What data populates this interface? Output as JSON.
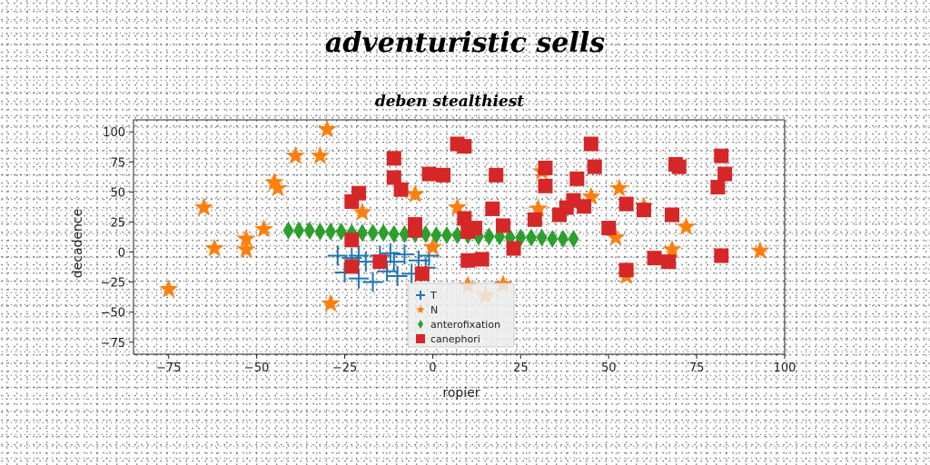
{
  "figure": {
    "title": "adventuristic sells"
  },
  "chart_data": {
    "type": "scatter",
    "title": "deben stealthiest",
    "xlabel": "ropier",
    "ylabel": "decadence",
    "xlim": [
      -85,
      100
    ],
    "ylim": [
      -85,
      110
    ],
    "xticks": [
      -75,
      -50,
      -25,
      0,
      25,
      50,
      75,
      100
    ],
    "yticks": [
      -75,
      -50,
      -25,
      0,
      25,
      50,
      75,
      100
    ],
    "xtick_labels": [
      "−75",
      "−50",
      "−25",
      "0",
      "25",
      "50",
      "75",
      "100"
    ],
    "ytick_labels": [
      "−75",
      "−50",
      "−25",
      "0",
      "25",
      "50",
      "75",
      "100"
    ],
    "grid": false,
    "legend_position": "bottom-center",
    "series": [
      {
        "name": "T",
        "marker": "plus",
        "color": "#1f77b4",
        "points": [
          [
            -27,
            -3
          ],
          [
            -25,
            -17
          ],
          [
            -23,
            -5
          ],
          [
            -21,
            -22
          ],
          [
            -19,
            -8
          ],
          [
            -17,
            -25
          ],
          [
            -15,
            -3
          ],
          [
            -13,
            -16
          ],
          [
            -11,
            -8
          ],
          [
            -10,
            -20
          ],
          [
            -8,
            -2
          ],
          [
            -6,
            -18
          ],
          [
            -4,
            -7
          ],
          [
            -2,
            -13
          ],
          [
            -1,
            -3
          ],
          [
            -21,
            -3
          ],
          [
            -12,
            -1
          ]
        ]
      },
      {
        "name": "N",
        "marker": "star",
        "color": "#ff7f0e",
        "points": [
          [
            -75,
            -31
          ],
          [
            -65,
            37
          ],
          [
            -62,
            3
          ],
          [
            -53,
            11
          ],
          [
            -53,
            2
          ],
          [
            -48,
            19
          ],
          [
            -45,
            58
          ],
          [
            -44,
            53
          ],
          [
            -39,
            80
          ],
          [
            -32,
            80
          ],
          [
            -30,
            102
          ],
          [
            -29,
            -43
          ],
          [
            -20,
            33
          ],
          [
            -5,
            48
          ],
          [
            0,
            4
          ],
          [
            7,
            37
          ],
          [
            10,
            -28
          ],
          [
            15,
            -36
          ],
          [
            20,
            -27
          ],
          [
            30,
            36
          ],
          [
            31,
            67
          ],
          [
            45,
            46
          ],
          [
            53,
            53
          ],
          [
            52,
            12
          ],
          [
            55,
            -20
          ],
          [
            60,
            38
          ],
          [
            68,
            2
          ],
          [
            72,
            21
          ],
          [
            93,
            1
          ]
        ]
      },
      {
        "name": "anterofixation",
        "marker": "diamond",
        "color": "#2ca02c",
        "points": [
          [
            -41,
            18
          ],
          [
            -38,
            18
          ],
          [
            -35,
            18
          ],
          [
            -32,
            17
          ],
          [
            -29,
            17
          ],
          [
            -26,
            17
          ],
          [
            -23,
            16
          ],
          [
            -20,
            16
          ],
          [
            -17,
            16
          ],
          [
            -14,
            16
          ],
          [
            -11,
            15
          ],
          [
            -8,
            15
          ],
          [
            -5,
            15
          ],
          [
            -2,
            15
          ],
          [
            1,
            14
          ],
          [
            4,
            14
          ],
          [
            7,
            14
          ],
          [
            10,
            14
          ],
          [
            13,
            13
          ],
          [
            16,
            13
          ],
          [
            19,
            13
          ],
          [
            22,
            12
          ],
          [
            25,
            12
          ],
          [
            28,
            12
          ],
          [
            31,
            12
          ],
          [
            34,
            11
          ],
          [
            37,
            11
          ],
          [
            40,
            11
          ]
        ]
      },
      {
        "name": "canephori",
        "marker": "square",
        "color": "#d62728",
        "points": [
          [
            -23,
            42
          ],
          [
            -21,
            49
          ],
          [
            -23,
            10
          ],
          [
            -23,
            -12
          ],
          [
            -15,
            -8
          ],
          [
            -11,
            78
          ],
          [
            -11,
            62
          ],
          [
            -9,
            52
          ],
          [
            -5,
            23
          ],
          [
            -5,
            18
          ],
          [
            -3,
            -18
          ],
          [
            -1,
            65
          ],
          [
            3,
            64
          ],
          [
            7,
            90
          ],
          [
            9,
            88
          ],
          [
            9,
            28
          ],
          [
            10,
            17
          ],
          [
            10,
            -7
          ],
          [
            12,
            20
          ],
          [
            14,
            -6
          ],
          [
            17,
            36
          ],
          [
            18,
            64
          ],
          [
            20,
            22
          ],
          [
            23,
            3
          ],
          [
            29,
            27
          ],
          [
            32,
            70
          ],
          [
            32,
            55
          ],
          [
            36,
            31
          ],
          [
            38,
            37
          ],
          [
            40,
            43
          ],
          [
            41,
            61
          ],
          [
            43,
            38
          ],
          [
            45,
            90
          ],
          [
            46,
            71
          ],
          [
            50,
            20
          ],
          [
            55,
            40
          ],
          [
            60,
            35
          ],
          [
            63,
            -5
          ],
          [
            55,
            -15
          ],
          [
            67,
            -8
          ],
          [
            68,
            31
          ],
          [
            69,
            73
          ],
          [
            70,
            71
          ],
          [
            81,
            54
          ],
          [
            82,
            80
          ],
          [
            82,
            -3
          ],
          [
            83,
            65
          ]
        ]
      }
    ]
  }
}
